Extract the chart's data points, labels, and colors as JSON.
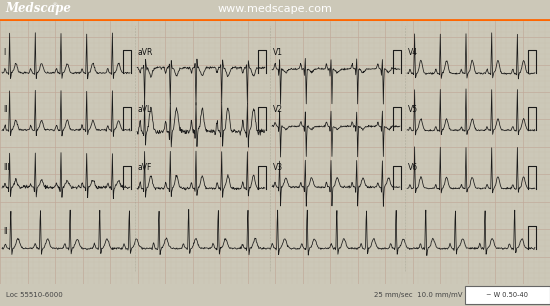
{
  "title": "www.medscape.com",
  "logo": "Medscape",
  "logo_reg": "®",
  "header_bg": "#003366",
  "header_accent": "#FF6600",
  "ecg_bg": "#ddd8c8",
  "grid_minor_color": "#c8bfaa",
  "grid_major_color": "#c0a898",
  "ecg_line_color": "#1a1a1a",
  "footer_bg": "#ccc8b8",
  "footer_text_left": "Loc 55510-6000",
  "footer_text_right": "25 mm/sec  10.0 mm/mV",
  "footer_box_text": "~ W 0.50-40",
  "fig_width": 5.5,
  "fig_height": 3.06,
  "dpi": 100
}
